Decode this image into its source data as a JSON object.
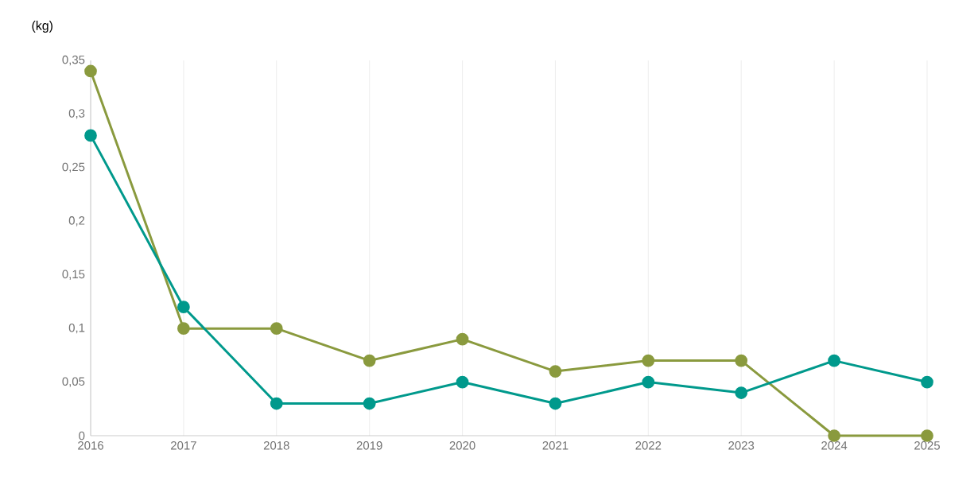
{
  "chart_data": {
    "type": "line",
    "ylabel": "(kg)",
    "x": [
      2016,
      2017,
      2018,
      2019,
      2020,
      2021,
      2022,
      2023,
      2024,
      2025
    ],
    "series": [
      {
        "color": "#8a9a3e",
        "values": [
          0.34,
          0.1,
          0.1,
          0.07,
          0.09,
          0.06,
          0.07,
          0.07,
          0,
          0
        ]
      },
      {
        "color": "#00998c",
        "values": [
          0.28,
          0.12,
          0.03,
          0.03,
          0.05,
          0.03,
          0.05,
          0.04,
          0.07,
          0.05
        ]
      }
    ],
    "xlim": [
      2016,
      2025
    ],
    "xticks": [
      2016,
      2017,
      2018,
      2019,
      2020,
      2021,
      2022,
      2023,
      2024,
      2025
    ],
    "ylim": [
      0,
      0.35
    ],
    "yticks": [
      {
        "value": 0,
        "label": "0"
      },
      {
        "value": 0.05,
        "label": "0,05"
      },
      {
        "value": 0.1,
        "label": "0,1"
      },
      {
        "value": 0.15,
        "label": "0,15"
      },
      {
        "value": 0.2,
        "label": "0,2"
      },
      {
        "value": 0.25,
        "label": "0,25"
      },
      {
        "value": 0.3,
        "label": "0,3"
      },
      {
        "value": 0.35,
        "label": "0,35"
      }
    ],
    "grid": "x",
    "marker": "circle",
    "line_style": "solid"
  }
}
